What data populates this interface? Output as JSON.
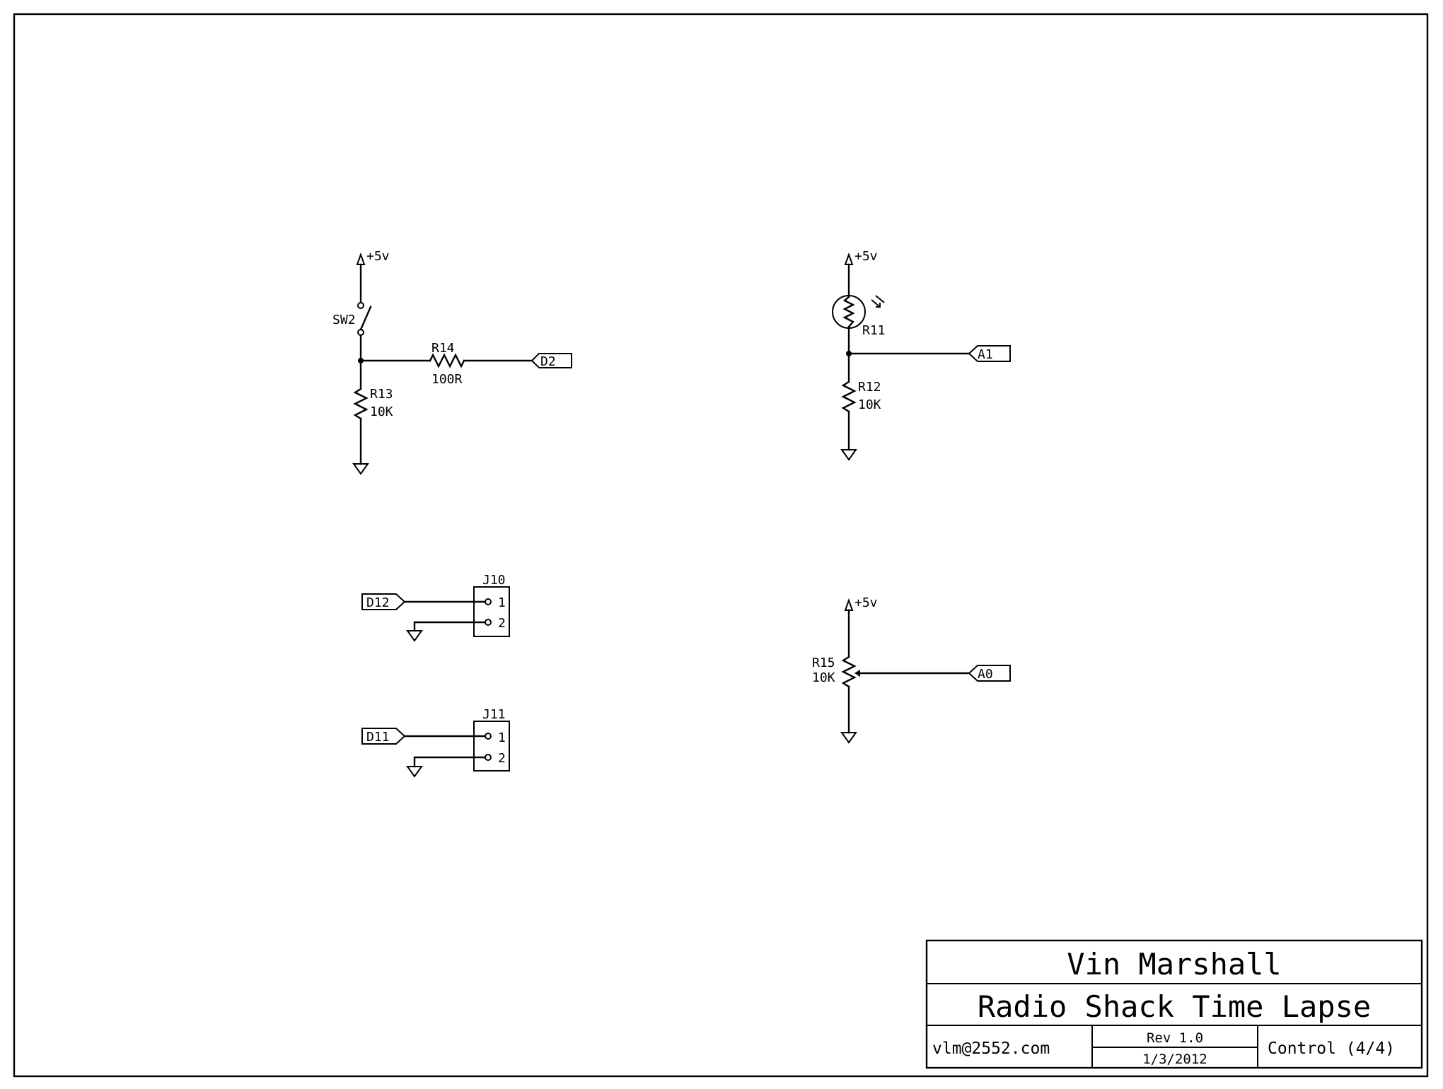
{
  "power_label": "+5v",
  "components": {
    "sw2": {
      "ref": "SW2"
    },
    "r13": {
      "ref": "R13",
      "value": "10K"
    },
    "r14": {
      "ref": "R14",
      "value": "100R"
    },
    "r11": {
      "ref": "R11"
    },
    "r12": {
      "ref": "R12",
      "value": "10K"
    },
    "r15": {
      "ref": "R15",
      "value": "10K"
    },
    "j10": {
      "ref": "J10",
      "pin1": "1",
      "pin2": "2"
    },
    "j11": {
      "ref": "J11",
      "pin1": "1",
      "pin2": "2"
    }
  },
  "nets": {
    "d2": "D2",
    "a1": "A1",
    "a0": "A0",
    "d12": "D12",
    "d11": "D11"
  },
  "title_block": {
    "author": "Vin Marshall",
    "project": "Radio Shack Time Lapse",
    "email": "vlm@2552.com",
    "revision": "Rev 1.0",
    "date": "1/3/2012",
    "sheet": "Control (4/4)"
  }
}
